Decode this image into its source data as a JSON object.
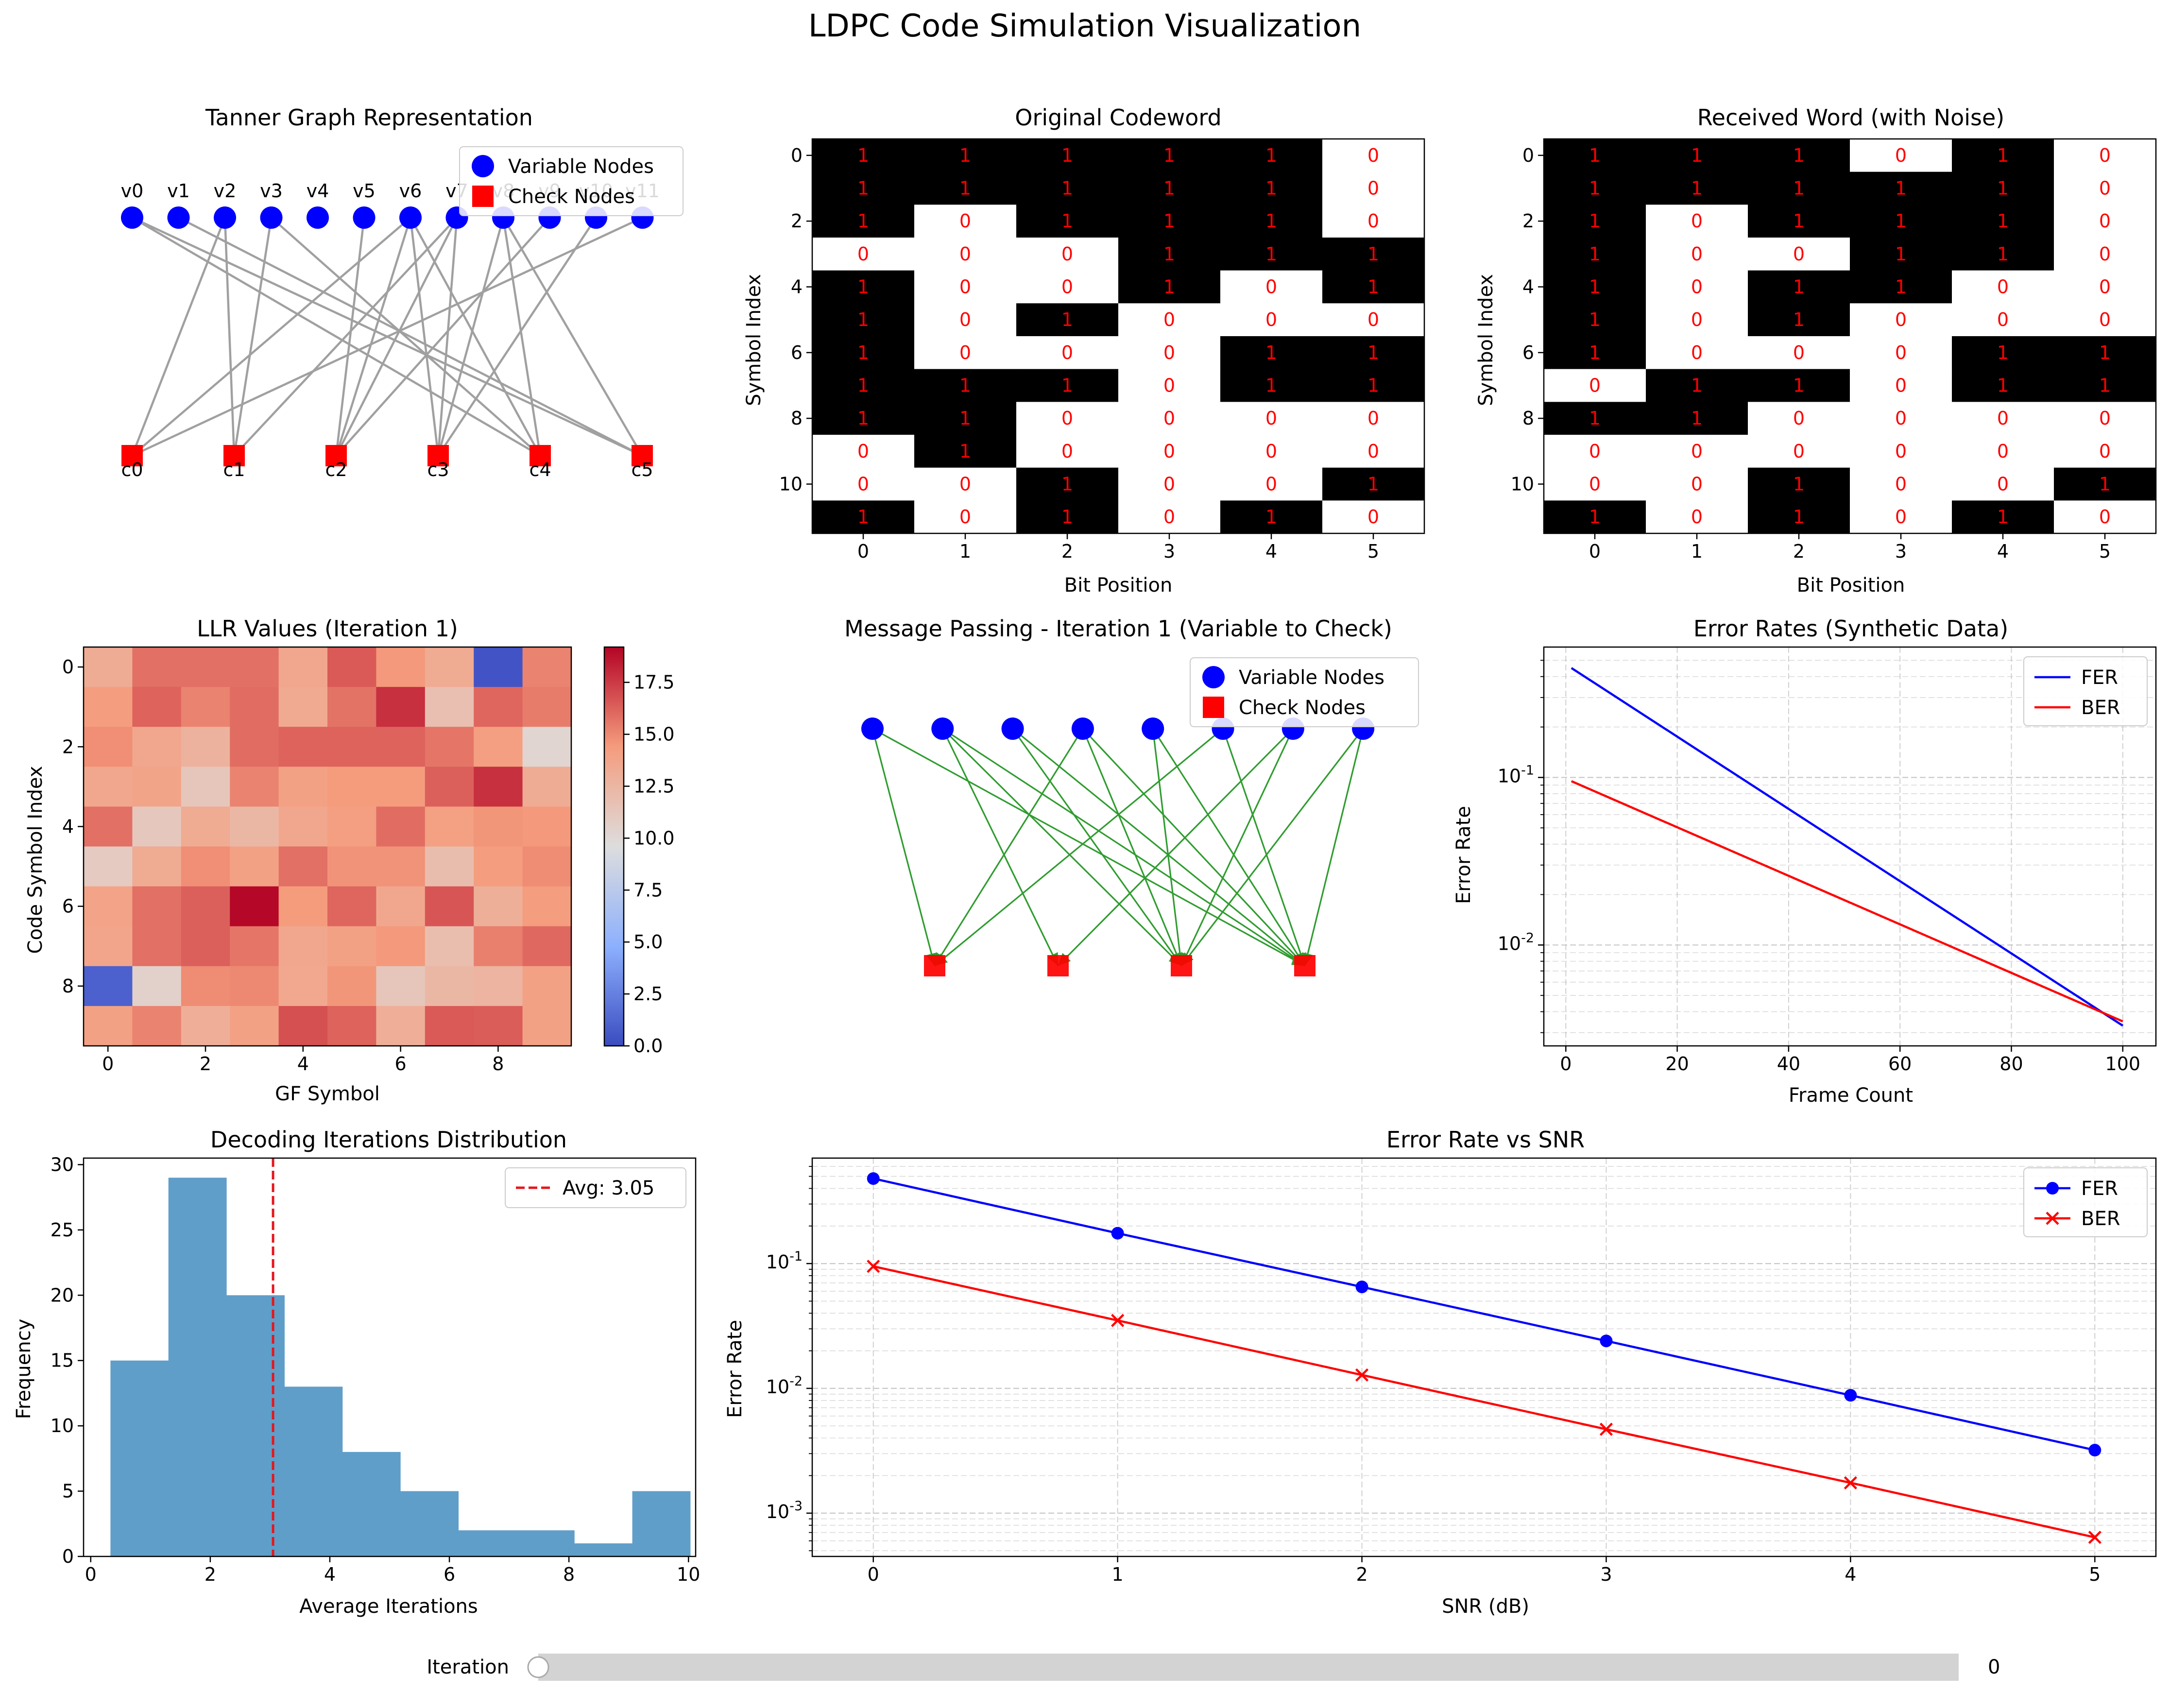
{
  "figure": {
    "title": "LDPC Code Simulation Visualization",
    "slider": {
      "label": "Iteration",
      "value": "0",
      "fraction": 0.0
    },
    "colors": {
      "fer": "#0000ff",
      "ber": "#ff0000",
      "hist": "#5f9ec9",
      "edge_gray": "#a0a0a0",
      "edge_green": "#2f9c2f",
      "avg_line": "#e8141b"
    }
  },
  "chart_data": [
    {
      "type": "diagram",
      "id": "tanner",
      "title": "Tanner Graph Representation",
      "variable_nodes": [
        "v0",
        "v1",
        "v2",
        "v3",
        "v4",
        "v5",
        "v6",
        "v7",
        "v8",
        "v9",
        "v10",
        "v11"
      ],
      "check_nodes": [
        "c0",
        "c1",
        "c2",
        "c3",
        "c4",
        "c5"
      ],
      "edges": [
        [
          0,
          4
        ],
        [
          0,
          5
        ],
        [
          2,
          0
        ],
        [
          2,
          1
        ],
        [
          3,
          1
        ],
        [
          1,
          5
        ],
        [
          6,
          0
        ],
        [
          6,
          2
        ],
        [
          6,
          3
        ],
        [
          7,
          2
        ],
        [
          7,
          3
        ],
        [
          7,
          1
        ],
        [
          8,
          3
        ],
        [
          8,
          5
        ],
        [
          8,
          4
        ],
        [
          9,
          2
        ],
        [
          10,
          3
        ],
        [
          11,
          0
        ],
        [
          6,
          4
        ],
        [
          5,
          2
        ],
        [
          3,
          4
        ]
      ],
      "legend": [
        "Variable Nodes",
        "Check Nodes"
      ]
    },
    {
      "type": "heatmap",
      "id": "original",
      "title": "Original Codeword",
      "xlabel": "Bit Position",
      "ylabel": "Symbol Index",
      "x_ticks": [
        "0",
        "1",
        "2",
        "3",
        "4",
        "5"
      ],
      "y_ticks": [
        "0",
        "2",
        "4",
        "6",
        "8",
        "10"
      ],
      "values": [
        [
          1,
          1,
          1,
          1,
          1,
          0
        ],
        [
          1,
          1,
          1,
          1,
          1,
          0
        ],
        [
          1,
          0,
          1,
          1,
          1,
          0
        ],
        [
          0,
          0,
          0,
          1,
          1,
          1
        ],
        [
          1,
          0,
          0,
          1,
          0,
          1
        ],
        [
          1,
          0,
          1,
          0,
          0,
          0
        ],
        [
          1,
          0,
          0,
          0,
          1,
          1
        ],
        [
          1,
          1,
          1,
          0,
          1,
          1
        ],
        [
          1,
          1,
          0,
          0,
          0,
          0
        ],
        [
          0,
          1,
          0,
          0,
          0,
          0
        ],
        [
          0,
          0,
          1,
          0,
          0,
          1
        ],
        [
          1,
          0,
          1,
          0,
          1,
          0
        ]
      ]
    },
    {
      "type": "heatmap",
      "id": "received",
      "title": "Received Word (with Noise)",
      "xlabel": "Bit Position",
      "ylabel": "Symbol Index",
      "x_ticks": [
        "0",
        "1",
        "2",
        "3",
        "4",
        "5"
      ],
      "y_ticks": [
        "0",
        "2",
        "4",
        "6",
        "8",
        "10"
      ],
      "values": [
        [
          1,
          1,
          1,
          0,
          1,
          0
        ],
        [
          1,
          1,
          1,
          1,
          1,
          0
        ],
        [
          1,
          0,
          1,
          1,
          1,
          0
        ],
        [
          1,
          0,
          0,
          1,
          1,
          0
        ],
        [
          1,
          0,
          1,
          1,
          0,
          0
        ],
        [
          1,
          0,
          1,
          0,
          0,
          0
        ],
        [
          1,
          0,
          0,
          0,
          1,
          1
        ],
        [
          0,
          1,
          1,
          0,
          1,
          1
        ],
        [
          1,
          1,
          0,
          0,
          0,
          0
        ],
        [
          0,
          0,
          0,
          0,
          0,
          0
        ],
        [
          0,
          0,
          1,
          0,
          0,
          1
        ],
        [
          1,
          0,
          1,
          0,
          1,
          0
        ]
      ]
    },
    {
      "type": "heatmap",
      "id": "llr",
      "title": "LLR Values (Iteration 1)",
      "xlabel": "GF Symbol",
      "ylabel": "Code Symbol Index",
      "x_ticks": [
        "0",
        "2",
        "4",
        "6",
        "8"
      ],
      "y_ticks": [
        "0",
        "2",
        "4",
        "6",
        "8"
      ],
      "colorbar_ticks": [
        "0.0",
        "2.5",
        "5.0",
        "7.5",
        "10.0",
        "12.5",
        "15.0",
        "17.5"
      ],
      "vmin": 0.0,
      "vmax": 19.2,
      "values": [
        [
          13.2,
          15.8,
          15.8,
          15.8,
          13.6,
          16.5,
          14.5,
          13.3,
          0.4,
          15.2
        ],
        [
          14.3,
          16.2,
          15.2,
          15.9,
          13.4,
          15.7,
          17.8,
          11.8,
          16.1,
          15.4
        ],
        [
          14.8,
          13.6,
          12.8,
          15.9,
          16.2,
          16.2,
          16.2,
          15.6,
          14.2,
          10.2
        ],
        [
          13.6,
          13.8,
          11.3,
          15.2,
          14.0,
          14.4,
          14.4,
          16.3,
          17.8,
          13.2
        ],
        [
          15.8,
          11.2,
          13.3,
          12.4,
          13.6,
          14.2,
          15.9,
          14.1,
          14.6,
          14.5
        ],
        [
          11.0,
          13.3,
          14.8,
          14.0,
          15.8,
          14.7,
          14.7,
          12.0,
          14.3,
          14.9
        ],
        [
          13.9,
          15.8,
          16.3,
          19.1,
          14.4,
          16.1,
          13.6,
          16.6,
          13.0,
          14.3
        ],
        [
          13.7,
          15.8,
          16.3,
          15.6,
          13.6,
          14.0,
          14.5,
          11.9,
          15.3,
          16.0
        ],
        [
          1.0,
          10.5,
          14.9,
          15.0,
          13.5,
          14.6,
          11.3,
          12.4,
          12.6,
          14.0
        ],
        [
          14.0,
          15.2,
          13.1,
          14.0,
          16.8,
          16.2,
          13.1,
          16.5,
          16.4,
          14.0
        ]
      ]
    },
    {
      "type": "diagram",
      "id": "message",
      "title": "Message Passing - Iteration 1 (Variable to Check)",
      "variable_count": 8,
      "check_count": 4,
      "edges": [
        [
          0,
          0
        ],
        [
          0,
          3
        ],
        [
          1,
          2
        ],
        [
          1,
          3
        ],
        [
          2,
          3
        ],
        [
          2,
          2
        ],
        [
          3,
          2
        ],
        [
          3,
          3
        ],
        [
          4,
          3
        ],
        [
          4,
          2
        ],
        [
          5,
          0
        ],
        [
          5,
          3
        ],
        [
          6,
          1
        ],
        [
          6,
          2
        ],
        [
          7,
          2
        ],
        [
          7,
          3
        ],
        [
          1,
          1
        ],
        [
          3,
          0
        ]
      ],
      "legend": [
        "Variable Nodes",
        "Check Nodes"
      ]
    },
    {
      "type": "line",
      "id": "frame",
      "title": "Error Rates (Synthetic Data)",
      "xlabel": "Frame Count",
      "ylabel": "Error Rate",
      "x_ticks": [
        "0",
        "20",
        "40",
        "60",
        "80",
        "100"
      ],
      "xlim": [
        -3.95,
        105.95
      ],
      "ylim": [
        0.0025,
        0.6
      ],
      "yscale": "log",
      "series": [
        {
          "name": "FER",
          "x": [
            1,
            100
          ],
          "y": [
            0.45,
            0.0033
          ]
        },
        {
          "name": "BER",
          "x": [
            1,
            100
          ],
          "y": [
            0.095,
            0.0035
          ]
        }
      ]
    },
    {
      "type": "bar",
      "id": "hist",
      "title": "Decoding Iterations Distribution",
      "xlabel": "Average Iterations",
      "ylabel": "Frequency",
      "x_ticks": [
        "0",
        "2",
        "4",
        "6",
        "8",
        "10"
      ],
      "y_ticks": [
        "0",
        "5",
        "10",
        "15",
        "20",
        "25",
        "30"
      ],
      "xlim": [
        -0.12,
        10.12
      ],
      "ylim": [
        0,
        30.5
      ],
      "bin_edges": [
        0.33,
        1.3,
        2.27,
        3.24,
        4.21,
        5.18,
        6.15,
        7.12,
        8.09,
        9.06,
        10.03
      ],
      "values": [
        15,
        29,
        20,
        13,
        8,
        5,
        2,
        2,
        1,
        5
      ],
      "average": 3.05,
      "legend": [
        "Avg: 3.05"
      ]
    },
    {
      "type": "line",
      "id": "snr",
      "title": "Error Rate vs SNR",
      "xlabel": "SNR (dB)",
      "ylabel": "Error Rate",
      "x_ticks": [
        "0",
        "1",
        "2",
        "3",
        "4",
        "5"
      ],
      "xlim": [
        -0.25,
        5.25
      ],
      "ylim": [
        0.00045,
        0.7
      ],
      "yscale": "log",
      "series": [
        {
          "name": "FER",
          "marker": "o",
          "x": [
            0,
            1,
            2,
            3,
            4,
            5
          ],
          "y": [
            0.48,
            0.175,
            0.065,
            0.024,
            0.0088,
            0.0032
          ]
        },
        {
          "name": "BER",
          "marker": "x",
          "x": [
            0,
            1,
            2,
            3,
            4,
            5
          ],
          "y": [
            0.095,
            0.035,
            0.0128,
            0.0047,
            0.00175,
            0.00064
          ]
        }
      ]
    }
  ]
}
